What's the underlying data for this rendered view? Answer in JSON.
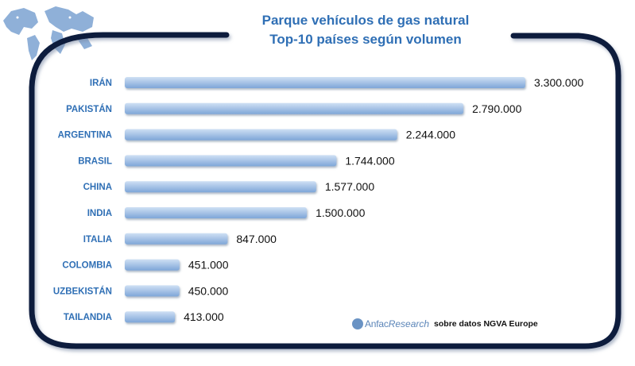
{
  "chart_data": {
    "type": "bar",
    "orientation": "horizontal",
    "title": "Parque vehículos de gas natural",
    "subtitle": "Top-10 países según volumen",
    "categories": [
      "IRÁN",
      "PAKISTÁN",
      "ARGENTINA",
      "BRASIL",
      "CHINA",
      "INDIA",
      "ITALIA",
      "COLOMBIA",
      "UZBEKISTÁN",
      "TAILANDIA"
    ],
    "values": [
      3300000,
      2790000,
      2244000,
      1744000,
      1577000,
      1500000,
      847000,
      451000,
      450000,
      413000
    ],
    "value_labels": [
      "3.300.000",
      "2.790.000",
      "2.244.000",
      "1.744.000",
      "1.577.000",
      "1.500.000",
      "847.000",
      "451.000",
      "450.000",
      "413.000"
    ],
    "xlim": [
      0,
      3300000
    ],
    "grid": false,
    "legend": "none"
  },
  "credit": {
    "brand_prefix": "Anfac",
    "brand_suffix": "Research",
    "source": "sobre datos NGVA Europe"
  },
  "colors": {
    "title": "#2f6fb5",
    "category_label": "#2f6fb5",
    "bar_light": "#cfe0f4",
    "bar_dark": "#7ea6d8",
    "frame": "#0d1b3e",
    "map": "#8fb0d8"
  },
  "icons": {
    "map": "world-map-icon",
    "logo": "anfac-logo-icon"
  }
}
